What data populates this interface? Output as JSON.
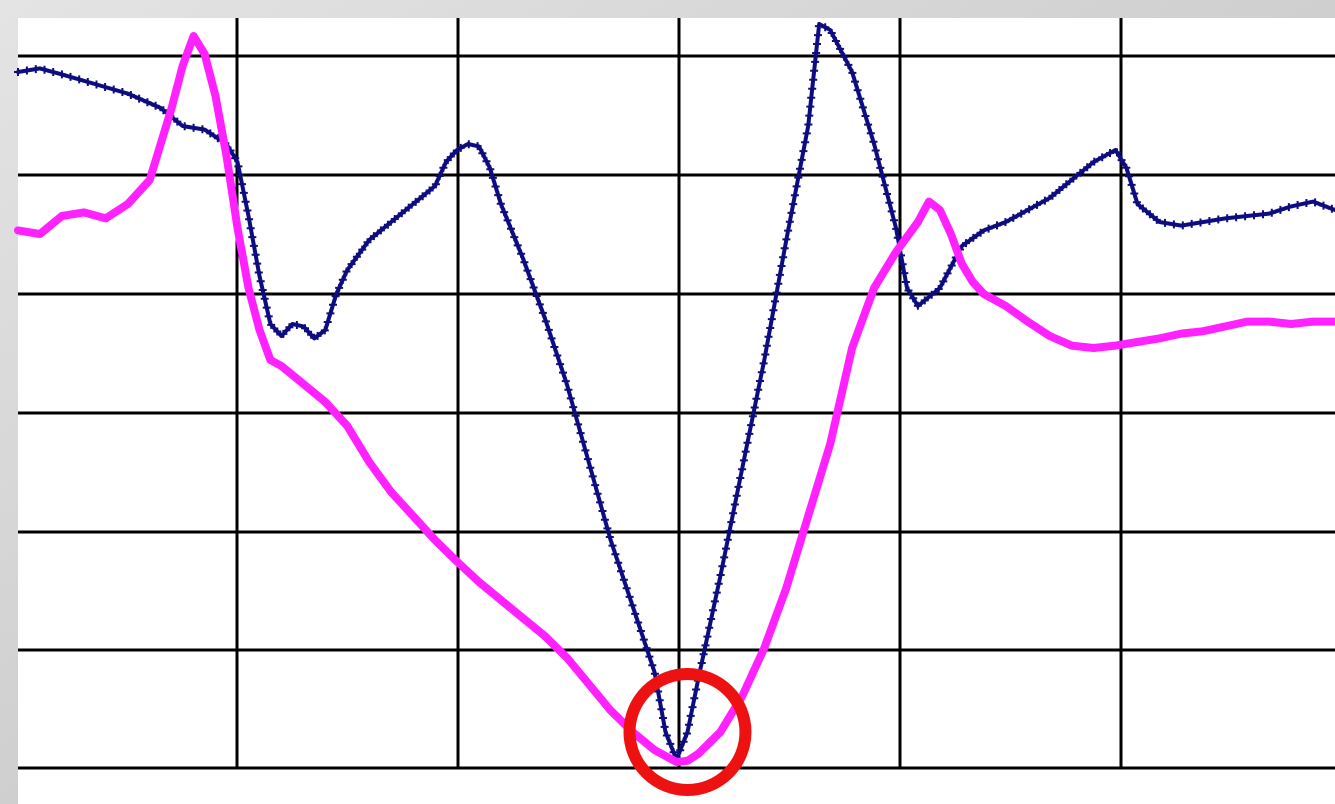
{
  "chart_data": {
    "type": "line",
    "title": "",
    "xlabel": "",
    "ylabel": "",
    "xlim": [
      0,
      6
    ],
    "ylim": [
      0,
      6.2
    ],
    "grid": true,
    "legend": "none",
    "series": [
      {
        "color": "#0d0d80",
        "marker": "plus",
        "x": [
          0,
          0.1,
          0.2,
          0.35,
          0.5,
          0.65,
          0.75,
          0.85,
          0.95,
          1.0,
          1.05,
          1.1,
          1.15,
          1.2,
          1.25,
          1.3,
          1.35,
          1.4,
          1.45,
          1.5,
          1.6,
          1.7,
          1.8,
          1.9,
          1.95,
          2.0,
          2.05,
          2.1,
          2.15,
          2.2,
          2.3,
          2.4,
          2.5,
          2.6,
          2.7,
          2.8,
          2.9,
          2.95,
          3.0,
          3.05,
          3.1,
          3.2,
          3.3,
          3.4,
          3.5,
          3.6,
          3.65,
          3.7,
          3.8,
          3.9,
          4.0,
          4.05,
          4.1,
          4.2,
          4.3,
          4.4,
          4.5,
          4.6,
          4.7,
          4.8,
          4.9,
          5.0,
          5.05,
          5.1,
          5.2,
          5.3,
          5.4,
          5.5,
          5.6,
          5.7,
          5.8,
          5.9,
          6.0
        ],
        "y": [
          5.8,
          5.83,
          5.78,
          5.7,
          5.62,
          5.5,
          5.35,
          5.32,
          5.2,
          5.05,
          4.6,
          4.1,
          3.7,
          3.6,
          3.7,
          3.68,
          3.58,
          3.65,
          3.95,
          4.15,
          4.4,
          4.55,
          4.7,
          4.85,
          5.05,
          5.15,
          5.2,
          5.18,
          5.0,
          4.7,
          4.25,
          3.75,
          3.2,
          2.55,
          1.9,
          1.35,
          0.8,
          0.3,
          0.07,
          0.3,
          0.75,
          1.6,
          2.5,
          3.4,
          4.4,
          5.35,
          6.2,
          6.15,
          5.8,
          5.2,
          4.5,
          4.0,
          3.85,
          4.0,
          4.35,
          4.48,
          4.55,
          4.65,
          4.75,
          4.9,
          5.05,
          5.15,
          5.0,
          4.7,
          4.55,
          4.52,
          4.55,
          4.58,
          4.6,
          4.62,
          4.68,
          4.72,
          4.65
        ]
      },
      {
        "color": "#ff22ff",
        "marker": "none",
        "x": [
          0,
          0.1,
          0.2,
          0.3,
          0.4,
          0.5,
          0.6,
          0.7,
          0.75,
          0.8,
          0.85,
          0.9,
          0.95,
          1.0,
          1.05,
          1.1,
          1.15,
          1.2,
          1.3,
          1.4,
          1.5,
          1.6,
          1.7,
          1.8,
          1.9,
          2.0,
          2.1,
          2.2,
          2.3,
          2.4,
          2.5,
          2.6,
          2.7,
          2.8,
          2.9,
          3.0,
          3.05,
          3.1,
          3.2,
          3.3,
          3.4,
          3.5,
          3.6,
          3.7,
          3.8,
          3.9,
          4.0,
          4.1,
          4.15,
          4.2,
          4.25,
          4.3,
          4.35,
          4.4,
          4.5,
          4.6,
          4.7,
          4.8,
          4.9,
          5.0,
          5.1,
          5.2,
          5.3,
          5.4,
          5.5,
          5.6,
          5.7,
          5.8,
          5.9,
          6.0
        ],
        "y": [
          4.48,
          4.45,
          4.6,
          4.63,
          4.58,
          4.7,
          4.9,
          5.5,
          5.85,
          6.1,
          5.95,
          5.6,
          5.1,
          4.5,
          4.0,
          3.65,
          3.4,
          3.35,
          3.2,
          3.05,
          2.85,
          2.55,
          2.3,
          2.1,
          1.9,
          1.72,
          1.55,
          1.4,
          1.25,
          1.1,
          0.92,
          0.7,
          0.48,
          0.3,
          0.15,
          0.05,
          0.06,
          0.12,
          0.3,
          0.6,
          1.0,
          1.5,
          2.1,
          2.7,
          3.5,
          4.0,
          4.3,
          4.55,
          4.72,
          4.65,
          4.45,
          4.2,
          4.05,
          3.95,
          3.85,
          3.72,
          3.6,
          3.52,
          3.5,
          3.52,
          3.55,
          3.58,
          3.62,
          3.64,
          3.68,
          3.72,
          3.72,
          3.7,
          3.72,
          3.72
        ]
      }
    ],
    "annotations": [
      {
        "type": "circle",
        "color": "#ee1111",
        "cx": 3.05,
        "cy": 0.3
      }
    ]
  }
}
